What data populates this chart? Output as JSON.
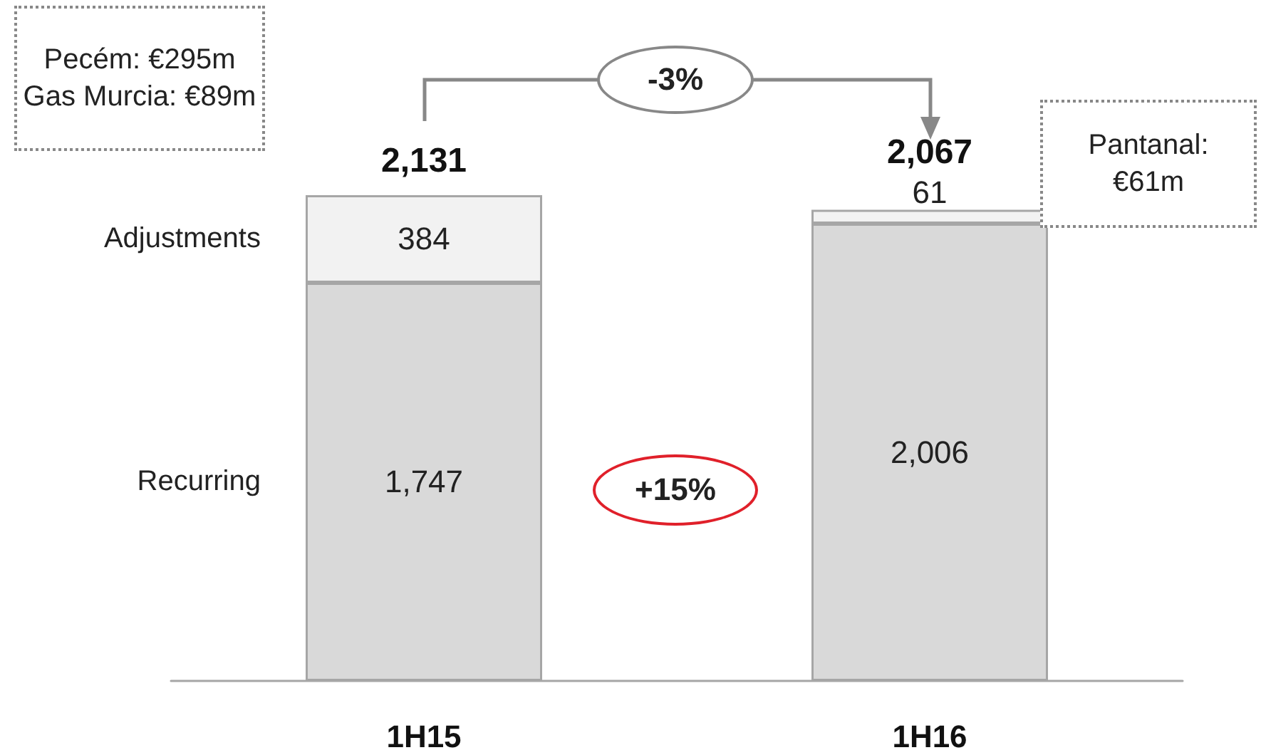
{
  "chart_data": {
    "type": "bar",
    "stacked": true,
    "categories": [
      "1H15",
      "1H16"
    ],
    "series": [
      {
        "name": "Recurring",
        "color": "#d9d9d9",
        "values": [
          1747,
          2006
        ],
        "value_labels": [
          "1,747",
          "2,006"
        ]
      },
      {
        "name": "Adjustments",
        "color": "#f2f2f2",
        "values": [
          384,
          61
        ],
        "value_labels": [
          "384",
          "61"
        ]
      }
    ],
    "totals": [
      "2,131",
      "2,067"
    ],
    "tick_labels": "x",
    "annotations": [
      "Pecém: €295m\nGas Murcia: €89m",
      "Pantanal:\n€61m",
      "-3%",
      "+15%"
    ]
  }
}
